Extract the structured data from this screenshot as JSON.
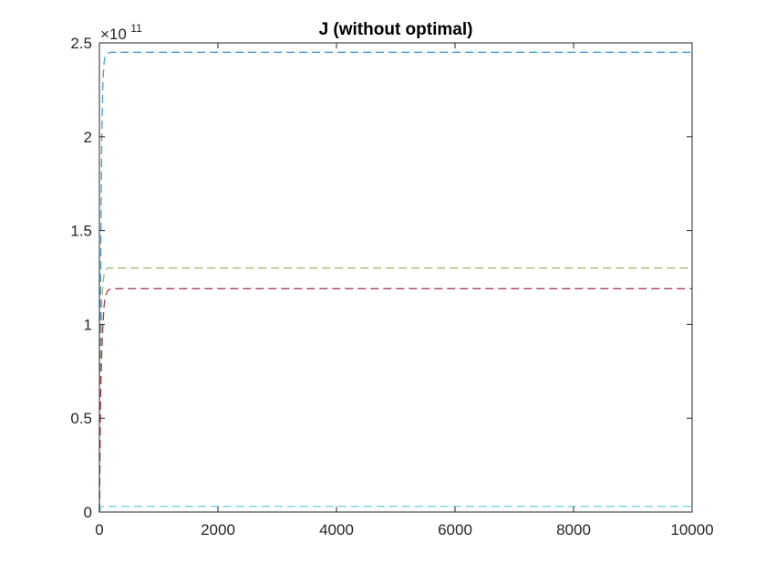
{
  "chart_data": {
    "type": "line",
    "title": "J (without optimal)",
    "xlabel": "",
    "ylabel": "",
    "xlim": [
      0,
      10000
    ],
    "ylim": [
      0,
      2.5
    ],
    "y_multiplier": {
      "base": "×10",
      "exponent": "11"
    },
    "x_ticks": [
      0,
      2000,
      4000,
      6000,
      8000,
      10000
    ],
    "x_tick_labels": [
      "0",
      "2000",
      "4000",
      "6000",
      "8000",
      "10000"
    ],
    "y_ticks": [
      0,
      0.5,
      1,
      1.5,
      2,
      2.5
    ],
    "y_tick_labels": [
      "0",
      "0.5",
      "1",
      "1.5",
      "2",
      "2.5"
    ],
    "grid": false,
    "line_style": "dashed",
    "series": [
      {
        "color": "#4a9ed6",
        "x": [
          0,
          20,
          40,
          60,
          80,
          100,
          140,
          200,
          10000
        ],
        "y": [
          0,
          1.2,
          2.0,
          2.3,
          2.4,
          2.43,
          2.445,
          2.45,
          2.45
        ]
      },
      {
        "color": "#9bc073",
        "x": [
          0,
          20,
          40,
          60,
          80,
          100,
          140,
          200,
          10000
        ],
        "y": [
          0,
          0.7,
          1.1,
          1.22,
          1.27,
          1.29,
          1.3,
          1.3,
          1.3
        ]
      },
      {
        "color": "#b23a5a",
        "x": [
          0,
          20,
          40,
          60,
          80,
          100,
          140,
          200,
          10000
        ],
        "y": [
          0,
          0.6,
          0.85,
          1.0,
          1.1,
          1.15,
          1.18,
          1.19,
          1.19
        ]
      },
      {
        "color": "#6fd0ee",
        "x": [
          0,
          20,
          40,
          10000
        ],
        "y": [
          0,
          0.02,
          0.03,
          0.03
        ]
      }
    ]
  }
}
